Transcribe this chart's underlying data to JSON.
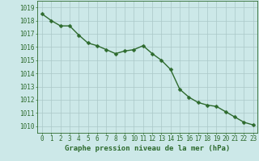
{
  "x": [
    0,
    1,
    2,
    3,
    4,
    5,
    6,
    7,
    8,
    9,
    10,
    11,
    12,
    13,
    14,
    15,
    16,
    17,
    18,
    19,
    20,
    21,
    22,
    23
  ],
  "y": [
    1018.5,
    1018.0,
    1017.6,
    1017.6,
    1016.9,
    1016.3,
    1016.1,
    1015.8,
    1015.5,
    1015.7,
    1015.8,
    1016.1,
    1015.5,
    1015.0,
    1014.3,
    1012.8,
    1012.2,
    1011.8,
    1011.6,
    1011.5,
    1011.1,
    1010.7,
    1010.3,
    1010.1
  ],
  "line_color": "#2d6a2d",
  "marker": "D",
  "marker_size": 2.5,
  "bg_color": "#cce8e8",
  "grid_color": "#aac8c8",
  "plot_bg_color": "#cce8e8",
  "title": "Graphe pression niveau de la mer (hPa)",
  "ylim": [
    1009.5,
    1019.5
  ],
  "xlim": [
    -0.5,
    23.5
  ],
  "yticks": [
    1010,
    1011,
    1012,
    1013,
    1014,
    1015,
    1016,
    1017,
    1018,
    1019
  ],
  "xticks": [
    0,
    1,
    2,
    3,
    4,
    5,
    6,
    7,
    8,
    9,
    10,
    11,
    12,
    13,
    14,
    15,
    16,
    17,
    18,
    19,
    20,
    21,
    22,
    23
  ],
  "tick_fontsize": 5.5,
  "title_fontsize": 6.5,
  "line_width": 1.0
}
